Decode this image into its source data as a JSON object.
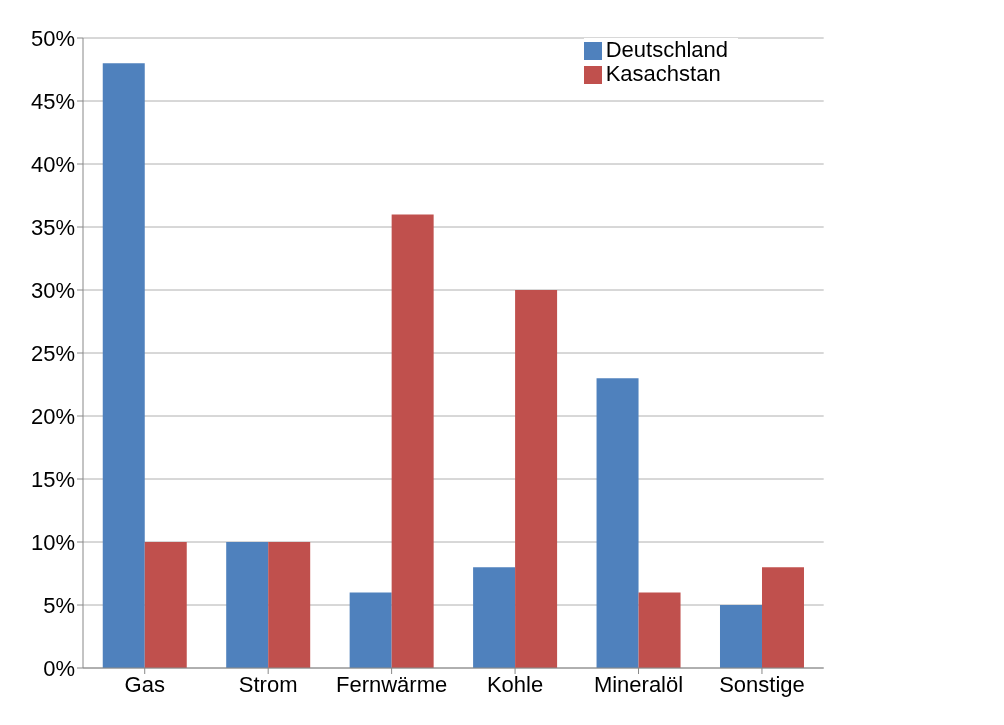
{
  "chart_data": {
    "type": "bar",
    "categories": [
      "Gas",
      "Strom",
      "Fernwärme",
      "Kohle",
      "Mineralöl",
      "Sonstige"
    ],
    "series": [
      {
        "name": "Deutschland",
        "color": "#4f81bd",
        "values": [
          48,
          10,
          6,
          8,
          23,
          5
        ]
      },
      {
        "name": "Kasachstan",
        "color": "#c0504d",
        "values": [
          10,
          10,
          36,
          30,
          6,
          8
        ]
      }
    ],
    "ylim": [
      0,
      50
    ],
    "yticks": [
      {
        "value": 0,
        "label": "0%"
      },
      {
        "value": 5,
        "label": "5%"
      },
      {
        "value": 10,
        "label": "10%"
      },
      {
        "value": 15,
        "label": "15%"
      },
      {
        "value": 20,
        "label": "20%"
      },
      {
        "value": 25,
        "label": "25%"
      },
      {
        "value": 30,
        "label": "30%"
      },
      {
        "value": 35,
        "label": "35%"
      },
      {
        "value": 40,
        "label": "40%"
      },
      {
        "value": 45,
        "label": "45%"
      },
      {
        "value": 50,
        "label": "50%"
      }
    ],
    "grid": "y",
    "legend": "top right"
  }
}
